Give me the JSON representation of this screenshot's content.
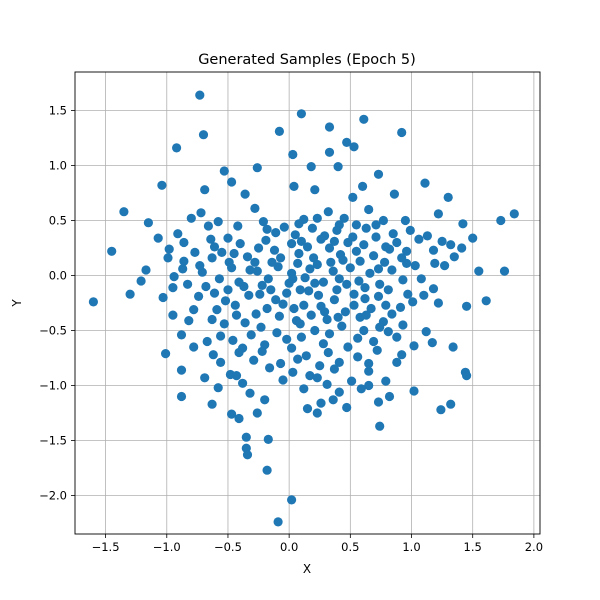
{
  "chart_data": {
    "type": "scatter",
    "title": "Generated Samples (Epoch 5)",
    "xlabel": "X",
    "ylabel": "Y",
    "xlim": [
      -1.75,
      2.05
    ],
    "ylim": [
      -2.35,
      1.85
    ],
    "xticks": [
      -1.5,
      -1.0,
      -0.5,
      0.0,
      0.5,
      1.0,
      1.5,
      2.0
    ],
    "xtick_labels": [
      "−1.5",
      "−1.0",
      "−0.5",
      "0.0",
      "0.5",
      "1.0",
      "1.5",
      "2.0"
    ],
    "yticks": [
      -2.0,
      -1.5,
      -1.0,
      -0.5,
      0.0,
      0.5,
      1.0,
      1.5
    ],
    "ytick_labels": [
      "−2.0",
      "−1.5",
      "−1.0",
      "−0.5",
      "0.0",
      "0.5",
      "1.0",
      "1.5"
    ],
    "grid": true,
    "marker_color": "#1f77b4",
    "points": [
      [
        -0.73,
        1.64
      ],
      [
        0.1,
        1.47
      ],
      [
        0.33,
        1.35
      ],
      [
        0.61,
        1.42
      ],
      [
        0.92,
        1.3
      ],
      [
        -0.7,
        1.28
      ],
      [
        -0.92,
        1.16
      ],
      [
        -0.08,
        1.31
      ],
      [
        0.47,
        1.21
      ],
      [
        0.53,
        1.17
      ],
      [
        0.03,
        1.1
      ],
      [
        0.33,
        1.12
      ],
      [
        -0.26,
        0.98
      ],
      [
        -0.53,
        0.95
      ],
      [
        0.18,
        0.99
      ],
      [
        0.4,
        0.99
      ],
      [
        0.73,
        0.92
      ],
      [
        -1.04,
        0.82
      ],
      [
        -0.47,
        0.85
      ],
      [
        -0.69,
        0.78
      ],
      [
        0.04,
        0.81
      ],
      [
        0.21,
        0.78
      ],
      [
        0.6,
        0.81
      ],
      [
        1.11,
        0.84
      ],
      [
        -0.36,
        0.74
      ],
      [
        0.52,
        0.71
      ],
      [
        0.86,
        0.74
      ],
      [
        1.3,
        0.71
      ],
      [
        -1.35,
        0.58
      ],
      [
        -0.72,
        0.57
      ],
      [
        -0.58,
        0.49
      ],
      [
        -0.28,
        0.61
      ],
      [
        0.32,
        0.58
      ],
      [
        0.65,
        0.6
      ],
      [
        1.22,
        0.56
      ],
      [
        -1.15,
        0.48
      ],
      [
        -0.8,
        0.52
      ],
      [
        -0.42,
        0.45
      ],
      [
        0.12,
        0.51
      ],
      [
        0.41,
        0.46
      ],
      [
        0.95,
        0.5
      ],
      [
        1.42,
        0.47
      ],
      [
        1.73,
        0.5
      ],
      [
        1.84,
        0.56
      ],
      [
        -0.91,
        0.38
      ],
      [
        -0.64,
        0.33
      ],
      [
        -0.18,
        0.42
      ],
      [
        0.05,
        0.37
      ],
      [
        0.29,
        0.36
      ],
      [
        0.71,
        0.35
      ],
      [
        1.06,
        0.33
      ],
      [
        1.32,
        0.28
      ],
      [
        1.5,
        0.34
      ],
      [
        -1.45,
        0.22
      ],
      [
        -0.98,
        0.24
      ],
      [
        -0.55,
        0.21
      ],
      [
        -0.25,
        0.25
      ],
      [
        0.15,
        0.26
      ],
      [
        0.42,
        0.19
      ],
      [
        0.82,
        0.24
      ],
      [
        1.18,
        0.23
      ],
      [
        1.41,
        0.25
      ],
      [
        -0.86,
        0.13
      ],
      [
        -0.49,
        0.12
      ],
      [
        -0.07,
        0.16
      ],
      [
        0.23,
        0.1
      ],
      [
        0.58,
        0.13
      ],
      [
        0.96,
        0.11
      ],
      [
        1.35,
        0.17
      ],
      [
        -1.17,
        0.05
      ],
      [
        -0.71,
        0.03
      ],
      [
        -0.32,
        0.05
      ],
      [
        0.02,
        0.02
      ],
      [
        0.36,
        0.04
      ],
      [
        0.73,
        0.06
      ],
      [
        1.03,
        0.09
      ],
      [
        1.55,
        0.04
      ],
      [
        1.76,
        0.04
      ],
      [
        -1.6,
        -0.24
      ],
      [
        -1.3,
        -0.17
      ],
      [
        -0.95,
        -0.11
      ],
      [
        -0.61,
        -0.16
      ],
      [
        -0.22,
        -0.09
      ],
      [
        0.09,
        -0.13
      ],
      [
        0.47,
        -0.08
      ],
      [
        0.81,
        -0.13
      ],
      [
        1.18,
        -0.12
      ],
      [
        1.61,
        -0.23
      ],
      [
        -1.03,
        -0.2
      ],
      [
        -0.78,
        -0.31
      ],
      [
        -0.44,
        -0.27
      ],
      [
        -0.11,
        -0.22
      ],
      [
        0.26,
        -0.28
      ],
      [
        0.62,
        -0.21
      ],
      [
        0.91,
        -0.29
      ],
      [
        1.22,
        -0.25
      ],
      [
        1.45,
        -0.28
      ],
      [
        -0.88,
        -0.54
      ],
      [
        -0.53,
        -0.44
      ],
      [
        -0.23,
        -0.47
      ],
      [
        0.06,
        -0.41
      ],
      [
        0.43,
        -0.46
      ],
      [
        0.77,
        -0.42
      ],
      [
        1.12,
        -0.51
      ],
      [
        -0.67,
        -0.6
      ],
      [
        -0.38,
        -0.66
      ],
      [
        -0.02,
        -0.58
      ],
      [
        0.28,
        -0.62
      ],
      [
        0.56,
        -0.57
      ],
      [
        0.88,
        -0.56
      ],
      [
        1.17,
        -0.61
      ],
      [
        1.34,
        -0.65
      ],
      [
        -1.01,
        -0.71
      ],
      [
        -0.62,
        -0.72
      ],
      [
        -0.29,
        -0.77
      ],
      [
        0.14,
        -0.73
      ],
      [
        0.41,
        -0.79
      ],
      [
        0.72,
        -0.68
      ],
      [
        1.02,
        -0.64
      ],
      [
        -0.88,
        -0.86
      ],
      [
        -0.48,
        -0.9
      ],
      [
        -0.16,
        -0.84
      ],
      [
        0.17,
        -0.91
      ],
      [
        0.37,
        -0.85
      ],
      [
        0.65,
        -0.87
      ],
      [
        0.88,
        -0.79
      ],
      [
        1.44,
        -0.88
      ],
      [
        -0.69,
        -0.93
      ],
      [
        -0.43,
        -0.91
      ],
      [
        -0.05,
        -0.95
      ],
      [
        0.23,
        -0.93
      ],
      [
        0.51,
        -0.96
      ],
      [
        0.79,
        -0.96
      ],
      [
        1.45,
        -0.91
      ],
      [
        -0.88,
        -1.1
      ],
      [
        -0.32,
        -1.07
      ],
      [
        0.12,
        -1.03
      ],
      [
        0.41,
        -1.06
      ],
      [
        0.65,
        -1.0
      ],
      [
        1.02,
        -1.05
      ],
      [
        -0.63,
        -1.17
      ],
      [
        0.15,
        -1.21
      ],
      [
        0.23,
        -1.25
      ],
      [
        0.26,
        -1.16
      ],
      [
        0.47,
        -1.2
      ],
      [
        0.73,
        -1.15
      ],
      [
        1.24,
        -1.22
      ],
      [
        1.32,
        -1.17
      ],
      [
        -0.47,
        -1.26
      ],
      [
        -0.41,
        -1.3
      ],
      [
        -0.26,
        -1.25
      ],
      [
        0.74,
        -1.37
      ],
      [
        -0.35,
        -1.47
      ],
      [
        -0.17,
        -1.49
      ],
      [
        -0.35,
        -1.57
      ],
      [
        -0.34,
        -1.63
      ],
      [
        -0.18,
        -1.77
      ],
      [
        0.02,
        -2.04
      ],
      [
        -0.09,
        -2.24
      ],
      [
        -0.86,
        0.3
      ],
      [
        -0.77,
        0.21
      ],
      [
        -0.66,
        0.45
      ],
      [
        -0.5,
        0.34
      ],
      [
        -0.4,
        0.29
      ],
      [
        -0.34,
        0.17
      ],
      [
        -0.19,
        0.32
      ],
      [
        -0.12,
        0.23
      ],
      [
        -0.04,
        0.44
      ],
      [
        0.02,
        0.29
      ],
      [
        0.08,
        0.2
      ],
      [
        0.19,
        0.43
      ],
      [
        0.26,
        0.33
      ],
      [
        0.33,
        0.25
      ],
      [
        0.39,
        0.41
      ],
      [
        0.48,
        0.3
      ],
      [
        0.55,
        0.22
      ],
      [
        0.63,
        0.43
      ],
      [
        0.69,
        0.18
      ],
      [
        0.77,
        0.5
      ],
      [
        0.85,
        0.38
      ],
      [
        0.92,
        0.16
      ],
      [
        0.99,
        0.41
      ],
      [
        -0.94,
        -0.01
      ],
      [
        -0.83,
        -0.08
      ],
      [
        -0.73,
        0.09
      ],
      [
        -0.57,
        -0.03
      ],
      [
        -0.47,
        0.07
      ],
      [
        -0.37,
        -0.1
      ],
      [
        -0.28,
        0.12
      ],
      [
        -0.17,
        -0.03
      ],
      [
        -0.09,
        0.08
      ],
      [
        0.0,
        -0.07
      ],
      [
        0.07,
        0.11
      ],
      [
        0.13,
        -0.02
      ],
      [
        0.2,
        0.16
      ],
      [
        0.28,
        -0.06
      ],
      [
        0.34,
        0.12
      ],
      [
        0.41,
        -0.03
      ],
      [
        0.5,
        0.07
      ],
      [
        0.57,
        -0.05
      ],
      [
        0.66,
        0.02
      ],
      [
        0.74,
        -0.08
      ],
      [
        0.84,
        0.05
      ],
      [
        0.93,
        -0.04
      ],
      [
        1.08,
        -0.03
      ],
      [
        -0.74,
        -0.19
      ],
      [
        -0.63,
        -0.4
      ],
      [
        -0.52,
        -0.23
      ],
      [
        -0.43,
        -0.36
      ],
      [
        -0.33,
        -0.18
      ],
      [
        -0.27,
        -0.35
      ],
      [
        -0.18,
        -0.3
      ],
      [
        -0.08,
        -0.37
      ],
      [
        -0.02,
        -0.16
      ],
      [
        0.04,
        -0.3
      ],
      [
        0.12,
        -0.27
      ],
      [
        0.18,
        -0.36
      ],
      [
        0.24,
        -0.18
      ],
      [
        0.31,
        -0.4
      ],
      [
        0.37,
        -0.22
      ],
      [
        0.46,
        -0.33
      ],
      [
        0.53,
        -0.17
      ],
      [
        0.58,
        -0.38
      ],
      [
        0.67,
        -0.3
      ],
      [
        0.73,
        -0.19
      ],
      [
        0.84,
        -0.35
      ],
      [
        1.01,
        -0.24
      ],
      [
        -0.78,
        -0.65
      ],
      [
        -0.56,
        -0.55
      ],
      [
        -0.46,
        -0.59
      ],
      [
        -0.31,
        -0.54
      ],
      [
        -0.2,
        -0.63
      ],
      [
        -0.1,
        -0.52
      ],
      [
        0.02,
        -0.66
      ],
      [
        0.1,
        -0.56
      ],
      [
        0.21,
        -0.5
      ],
      [
        0.33,
        -0.53
      ],
      [
        0.48,
        -0.65
      ],
      [
        0.61,
        -0.5
      ],
      [
        0.69,
        -0.6
      ],
      [
        0.81,
        -0.51
      ],
      [
        -0.56,
        -0.79
      ],
      [
        -0.41,
        -0.7
      ],
      [
        -0.22,
        -0.69
      ],
      [
        -0.07,
        -0.8
      ],
      [
        0.07,
        -0.76
      ],
      [
        0.25,
        -0.82
      ],
      [
        0.32,
        -0.7
      ],
      [
        0.56,
        -0.74
      ],
      [
        0.65,
        -0.8
      ],
      [
        0.92,
        -0.72
      ],
      [
        -0.38,
        -0.98
      ],
      [
        -0.2,
        -1.13
      ],
      [
        0.31,
        -0.99
      ],
      [
        0.59,
        -1.03
      ],
      [
        0.82,
        -1.1
      ],
      [
        -0.58,
        -1.02
      ],
      [
        0.03,
        -0.88
      ],
      [
        0.36,
        -1.13
      ],
      [
        -0.21,
        0.49
      ],
      [
        -0.11,
        0.39
      ],
      [
        0.08,
        0.47
      ],
      [
        0.23,
        0.52
      ],
      [
        0.45,
        0.52
      ],
      [
        0.55,
        0.46
      ],
      [
        0.71,
        0.46
      ],
      [
        0.79,
        0.26
      ],
      [
        0.88,
        0.3
      ],
      [
        1.13,
        0.36
      ],
      [
        1.25,
        0.31
      ],
      [
        1.27,
        0.09
      ],
      [
        -1.07,
        0.34
      ],
      [
        -0.99,
        0.16
      ],
      [
        -0.87,
        0.06
      ],
      [
        -0.63,
        0.16
      ],
      [
        -0.61,
        0.26
      ],
      [
        -0.45,
        0.2
      ],
      [
        -0.26,
        0.04
      ],
      [
        -0.14,
        0.12
      ],
      [
        0.1,
        0.31
      ],
      [
        0.17,
        0.06
      ],
      [
        0.37,
        0.31
      ],
      [
        0.44,
        0.14
      ],
      [
        0.52,
        0.35
      ],
      [
        0.61,
        0.28
      ],
      [
        0.78,
        0.12
      ],
      [
        0.96,
        0.22
      ],
      [
        1.19,
        0.11
      ],
      [
        -1.21,
        -0.05
      ],
      [
        -0.68,
        -0.1
      ],
      [
        -0.5,
        -0.13
      ],
      [
        -0.41,
        -0.06
      ],
      [
        -0.15,
        -0.13
      ],
      [
        0.03,
        -0.03
      ],
      [
        0.16,
        -0.14
      ],
      [
        0.21,
        -0.07
      ],
      [
        0.39,
        -0.13
      ],
      [
        0.53,
        -0.27
      ],
      [
        0.62,
        -0.11
      ],
      [
        0.79,
        -0.27
      ],
      [
        0.97,
        -0.17
      ],
      [
        1.1,
        -0.18
      ],
      [
        -0.95,
        -0.36
      ],
      [
        -0.82,
        -0.41
      ],
      [
        -0.59,
        -0.31
      ],
      [
        -0.36,
        -0.43
      ],
      [
        -0.24,
        -0.17
      ],
      [
        -0.05,
        -0.26
      ],
      [
        0.09,
        -0.44
      ],
      [
        0.29,
        -0.33
      ],
      [
        0.4,
        -0.38
      ],
      [
        0.63,
        -0.36
      ],
      [
        0.74,
        -0.47
      ],
      [
        0.93,
        -0.45
      ]
    ]
  }
}
